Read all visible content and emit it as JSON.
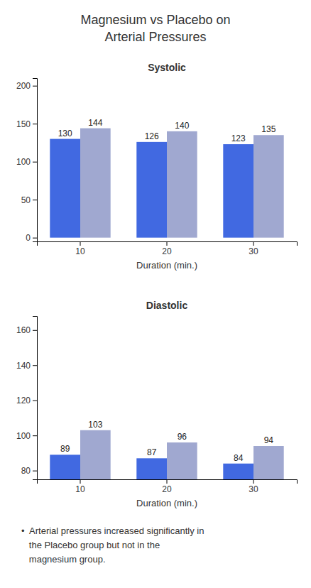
{
  "title": "Magnesium vs Placebo on\nArterial Pressures",
  "annotations": [
    "•  Arterial pressures increased significantly in",
    "   the Placebo group but not in the",
    "   magnesium group."
  ],
  "chart_data": [
    {
      "type": "bar",
      "title": "Systolic",
      "xlabel": "Duration (min.)",
      "categories": [
        10,
        20,
        30
      ],
      "series": [
        {
          "color": "#4169e1",
          "values": [
            130,
            126,
            123
          ]
        },
        {
          "color": "#a0a8d0",
          "values": [
            144,
            140,
            135
          ]
        }
      ],
      "ylim": [
        -5,
        210
      ],
      "yticks": [
        0,
        50,
        100,
        150,
        200
      ],
      "data_labels": true
    },
    {
      "type": "bar",
      "title": "Diastolic",
      "xlabel": "Duration (min.)",
      "categories": [
        10,
        20,
        30
      ],
      "series": [
        {
          "color": "#4169e1",
          "values": [
            89,
            87,
            84
          ]
        },
        {
          "color": "#a0a8d0",
          "values": [
            103,
            96,
            94
          ]
        }
      ],
      "ylim": [
        75,
        168
      ],
      "yticks": [
        80,
        100,
        120,
        140,
        160
      ],
      "data_labels": true
    }
  ]
}
